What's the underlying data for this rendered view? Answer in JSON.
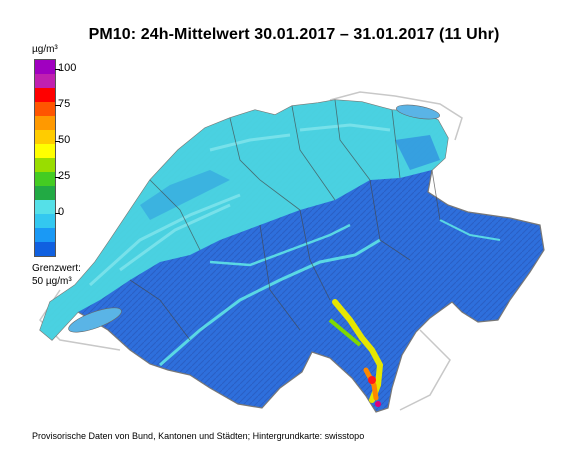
{
  "title": "PM10: 24h-Mittelwert 30.01.2017 – 31.01.2017 (11 Uhr)",
  "legend": {
    "unit": "µg/m³",
    "ticks": [
      "100",
      "75",
      "50",
      "25",
      "0"
    ],
    "colors": [
      "#a000c0",
      "#c020b0",
      "#ff0000",
      "#ff5500",
      "#ff9900",
      "#ffcc00",
      "#ffff00",
      "#99dd00",
      "#44cc22",
      "#22aa44",
      "#55e0e8",
      "#33c8f0",
      "#1a99f5",
      "#1060e0"
    ],
    "limit_label_line1": "Grenzwert:",
    "limit_label_line2": "50 µg/m³"
  },
  "footer": "Provisorische Daten von Bund, Kantonen und Städten; Hintergrundkarte: swisstopo"
}
